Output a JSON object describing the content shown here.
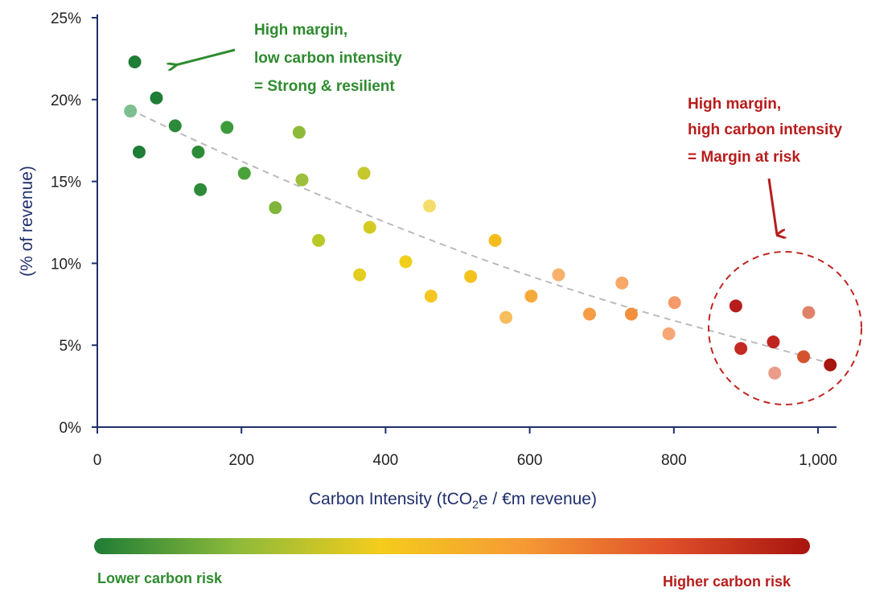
{
  "chart_data": {
    "type": "scatter",
    "xlabel_parts": [
      "Carbon Intensity (tCO",
      "2",
      "e / €m revenue)"
    ],
    "ylabel": "(% of revenue)",
    "xlim": [
      0,
      1030
    ],
    "ylim": [
      0,
      25
    ],
    "x_ticks": [
      0,
      200,
      400,
      600,
      800,
      1000
    ],
    "x_tick_labels": [
      "0",
      "200",
      "400",
      "600",
      "800",
      "1,000"
    ],
    "y_ticks": [
      0,
      5,
      10,
      15,
      20,
      25
    ],
    "y_tick_labels": [
      "0%",
      "5%",
      "10%",
      "15%",
      "20%",
      "25%"
    ],
    "grid": false,
    "trendline": {
      "style": "dashed",
      "color": "#bbbbbb",
      "points": [
        [
          45,
          19.4
        ],
        [
          150,
          17.2
        ],
        [
          300,
          14.3
        ],
        [
          450,
          11.6
        ],
        [
          600,
          9.2
        ],
        [
          750,
          7.1
        ],
        [
          900,
          5.3
        ],
        [
          1025,
          3.8
        ]
      ]
    },
    "points": [
      {
        "x": 46,
        "y": 19.3,
        "color": "#7dbf8e"
      },
      {
        "x": 52,
        "y": 22.3,
        "color": "#1e7d36"
      },
      {
        "x": 58,
        "y": 16.8,
        "color": "#1e7d36"
      },
      {
        "x": 82,
        "y": 20.1,
        "color": "#1e7d36"
      },
      {
        "x": 108,
        "y": 18.4,
        "color": "#2d8a38"
      },
      {
        "x": 140,
        "y": 16.8,
        "color": "#2d8a38"
      },
      {
        "x": 143,
        "y": 14.5,
        "color": "#2d8a38"
      },
      {
        "x": 180,
        "y": 18.3,
        "color": "#3d9a3b"
      },
      {
        "x": 204,
        "y": 15.5,
        "color": "#4aa23a"
      },
      {
        "x": 247,
        "y": 13.4,
        "color": "#7fb53a"
      },
      {
        "x": 280,
        "y": 18.0,
        "color": "#8dba3a"
      },
      {
        "x": 284,
        "y": 15.1,
        "color": "#9cc03c"
      },
      {
        "x": 307,
        "y": 11.4,
        "color": "#b8c928"
      },
      {
        "x": 364,
        "y": 9.3,
        "color": "#e3cd1f"
      },
      {
        "x": 370,
        "y": 15.5,
        "color": "#c5c72c"
      },
      {
        "x": 378,
        "y": 12.2,
        "color": "#d4cb22"
      },
      {
        "x": 428,
        "y": 10.1,
        "color": "#f0cf1b"
      },
      {
        "x": 461,
        "y": 13.5,
        "color": "#f4dd6a"
      },
      {
        "x": 463,
        "y": 8.0,
        "color": "#f5c522"
      },
      {
        "x": 518,
        "y": 9.2,
        "color": "#f4c21c"
      },
      {
        "x": 552,
        "y": 11.4,
        "color": "#f4bd1e"
      },
      {
        "x": 567,
        "y": 6.7,
        "color": "#f8bd5c"
      },
      {
        "x": 602,
        "y": 8.0,
        "color": "#f5a93b"
      },
      {
        "x": 640,
        "y": 9.3,
        "color": "#f8b16a"
      },
      {
        "x": 683,
        "y": 6.9,
        "color": "#f59c45"
      },
      {
        "x": 728,
        "y": 8.8,
        "color": "#f7a868"
      },
      {
        "x": 741,
        "y": 6.9,
        "color": "#f28f3d"
      },
      {
        "x": 793,
        "y": 5.7,
        "color": "#f6a775"
      },
      {
        "x": 801,
        "y": 7.6,
        "color": "#f49a6a"
      },
      {
        "x": 886,
        "y": 7.4,
        "color": "#b71c1c"
      },
      {
        "x": 893,
        "y": 4.8,
        "color": "#c42a22"
      },
      {
        "x": 938,
        "y": 5.2,
        "color": "#c0241f"
      },
      {
        "x": 940,
        "y": 3.3,
        "color": "#eb9c8a"
      },
      {
        "x": 980,
        "y": 4.3,
        "color": "#d5522f"
      },
      {
        "x": 987,
        "y": 7.0,
        "color": "#e0826a"
      },
      {
        "x": 1017,
        "y": 3.8,
        "color": "#a8140f"
      }
    ],
    "annotations": [
      {
        "lines": [
          "High margin,",
          "low carbon intensity",
          "= Strong & resilient"
        ],
        "color": "#2e8b2f"
      },
      {
        "lines": [
          "High margin,",
          "high carbon intensity",
          "= Margin at risk"
        ],
        "color": "#b81c1c"
      }
    ],
    "color_scale": {
      "stops": [
        "#1e7d36",
        "#8dba3a",
        "#f4cc1c",
        "#f59a35",
        "#e0502a",
        "#a8140f"
      ],
      "low_label": "Lower carbon risk",
      "high_label": "Higher carbon risk"
    }
  }
}
